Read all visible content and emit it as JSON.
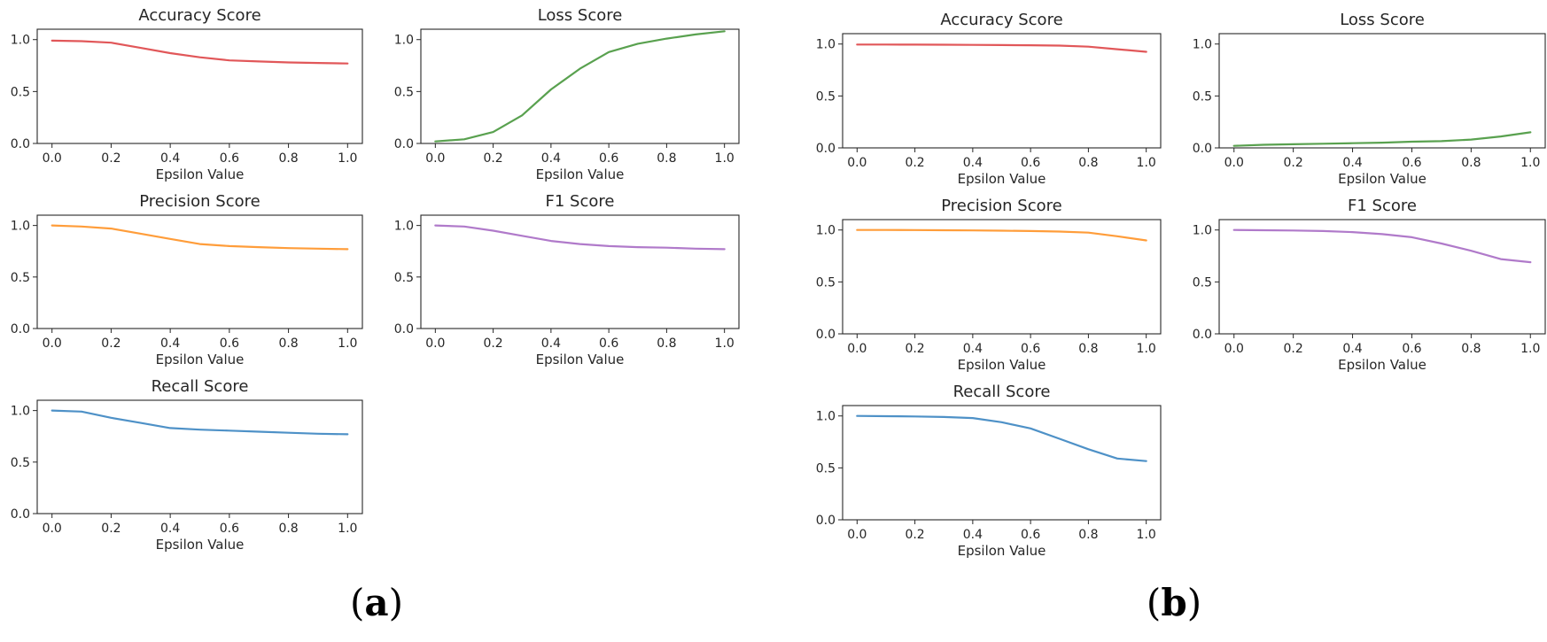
{
  "chart_data": [
    {
      "panel": "a",
      "type": "line",
      "title": "Accuracy Score",
      "xlabel": "Epsilon Value",
      "ylabel": "",
      "color": "#e15759",
      "x": [
        0.0,
        0.1,
        0.2,
        0.3,
        0.4,
        0.5,
        0.6,
        0.7,
        0.8,
        0.9,
        1.0
      ],
      "values": [
        0.99,
        0.985,
        0.97,
        0.92,
        0.87,
        0.83,
        0.8,
        0.79,
        0.78,
        0.775,
        0.77
      ],
      "xlim": [
        0.0,
        1.0
      ],
      "ylim": [
        0.0,
        1.1
      ],
      "xticks": [
        "0.0",
        "0.2",
        "0.4",
        "0.6",
        "0.8",
        "1.0"
      ],
      "yticks": [
        "0.0",
        "0.5",
        "1.0"
      ]
    },
    {
      "panel": "a",
      "type": "line",
      "title": "Loss Score",
      "xlabel": "Epsilon Value",
      "ylabel": "",
      "color": "#59a14f",
      "x": [
        0.0,
        0.1,
        0.2,
        0.3,
        0.4,
        0.5,
        0.6,
        0.7,
        0.8,
        0.9,
        1.0
      ],
      "values": [
        0.02,
        0.04,
        0.11,
        0.27,
        0.52,
        0.72,
        0.88,
        0.96,
        1.01,
        1.05,
        1.08
      ],
      "xlim": [
        0.0,
        1.0
      ],
      "ylim": [
        0.0,
        1.1
      ],
      "xticks": [
        "0.0",
        "0.2",
        "0.4",
        "0.6",
        "0.8",
        "1.0"
      ],
      "yticks": [
        "0.0",
        "0.5",
        "1.0"
      ]
    },
    {
      "panel": "a",
      "type": "line",
      "title": "Precision Score",
      "xlabel": "Epsilon Value",
      "ylabel": "",
      "color": "#ff9d3a",
      "x": [
        0.0,
        0.1,
        0.2,
        0.3,
        0.4,
        0.5,
        0.6,
        0.7,
        0.8,
        0.9,
        1.0
      ],
      "values": [
        1.0,
        0.99,
        0.97,
        0.92,
        0.87,
        0.82,
        0.8,
        0.79,
        0.78,
        0.775,
        0.77
      ],
      "xlim": [
        0.0,
        1.0
      ],
      "ylim": [
        0.0,
        1.1
      ],
      "xticks": [
        "0.0",
        "0.2",
        "0.4",
        "0.6",
        "0.8",
        "1.0"
      ],
      "yticks": [
        "0.0",
        "0.5",
        "1.0"
      ]
    },
    {
      "panel": "a",
      "type": "line",
      "title": "F1 Score",
      "xlabel": "Epsilon Value",
      "ylabel": "",
      "color": "#b07aca",
      "x": [
        0.0,
        0.1,
        0.2,
        0.3,
        0.4,
        0.5,
        0.6,
        0.7,
        0.8,
        0.9,
        1.0
      ],
      "values": [
        1.0,
        0.99,
        0.95,
        0.9,
        0.85,
        0.82,
        0.8,
        0.79,
        0.785,
        0.775,
        0.77
      ],
      "xlim": [
        0.0,
        1.0
      ],
      "ylim": [
        0.0,
        1.1
      ],
      "xticks": [
        "0.0",
        "0.2",
        "0.4",
        "0.6",
        "0.8",
        "1.0"
      ],
      "yticks": [
        "0.0",
        "0.5",
        "1.0"
      ]
    },
    {
      "panel": "a",
      "type": "line",
      "title": "Recall Score",
      "xlabel": "Epsilon Value",
      "ylabel": "",
      "color": "#4e91c7",
      "x": [
        0.0,
        0.1,
        0.2,
        0.3,
        0.4,
        0.5,
        0.6,
        0.7,
        0.8,
        0.9,
        1.0
      ],
      "values": [
        1.0,
        0.99,
        0.93,
        0.88,
        0.83,
        0.815,
        0.805,
        0.795,
        0.785,
        0.775,
        0.77
      ],
      "xlim": [
        0.0,
        1.0
      ],
      "ylim": [
        0.0,
        1.1
      ],
      "xticks": [
        "0.0",
        "0.2",
        "0.4",
        "0.6",
        "0.8",
        "1.0"
      ],
      "yticks": [
        "0.0",
        "0.5",
        "1.0"
      ]
    },
    {
      "panel": "b",
      "type": "line",
      "title": "Accuracy Score",
      "xlabel": "Epsilon Value",
      "ylabel": "",
      "color": "#e15759",
      "x": [
        0.0,
        0.1,
        0.2,
        0.3,
        0.4,
        0.5,
        0.6,
        0.7,
        0.8,
        0.9,
        1.0
      ],
      "values": [
        0.995,
        0.995,
        0.994,
        0.993,
        0.992,
        0.99,
        0.988,
        0.985,
        0.975,
        0.95,
        0.925
      ],
      "xlim": [
        0.0,
        1.0
      ],
      "ylim": [
        0.0,
        1.1
      ],
      "xticks": [
        "0.0",
        "0.2",
        "0.4",
        "0.6",
        "0.8",
        "1.0"
      ],
      "yticks": [
        "0.0",
        "0.5",
        "1.0"
      ]
    },
    {
      "panel": "b",
      "type": "line",
      "title": "Loss Score",
      "xlabel": "Epsilon Value",
      "ylabel": "",
      "color": "#59a14f",
      "x": [
        0.0,
        0.1,
        0.2,
        0.3,
        0.4,
        0.5,
        0.6,
        0.7,
        0.8,
        0.9,
        1.0
      ],
      "values": [
        0.02,
        0.03,
        0.035,
        0.04,
        0.045,
        0.05,
        0.06,
        0.065,
        0.08,
        0.11,
        0.15
      ],
      "xlim": [
        0.0,
        1.0
      ],
      "ylim": [
        0.0,
        1.1
      ],
      "xticks": [
        "0.0",
        "0.2",
        "0.4",
        "0.6",
        "0.8",
        "1.0"
      ],
      "yticks": [
        "0.0",
        "0.5",
        "1.0"
      ]
    },
    {
      "panel": "b",
      "type": "line",
      "title": "Precision Score",
      "xlabel": "Epsilon Value",
      "ylabel": "",
      "color": "#ff9d3a",
      "x": [
        0.0,
        0.1,
        0.2,
        0.3,
        0.4,
        0.5,
        0.6,
        0.7,
        0.8,
        0.9,
        1.0
      ],
      "values": [
        1.0,
        1.0,
        0.999,
        0.998,
        0.996,
        0.993,
        0.99,
        0.985,
        0.975,
        0.94,
        0.9
      ],
      "xlim": [
        0.0,
        1.0
      ],
      "ylim": [
        0.0,
        1.1
      ],
      "xticks": [
        "0.0",
        "0.2",
        "0.4",
        "0.6",
        "0.8",
        "1.0"
      ],
      "yticks": [
        "0.0",
        "0.5",
        "1.0"
      ]
    },
    {
      "panel": "b",
      "type": "line",
      "title": "F1 Score",
      "xlabel": "Epsilon Value",
      "ylabel": "",
      "color": "#b07aca",
      "x": [
        0.0,
        0.1,
        0.2,
        0.3,
        0.4,
        0.5,
        0.6,
        0.7,
        0.8,
        0.9,
        1.0
      ],
      "values": [
        1.0,
        0.998,
        0.995,
        0.99,
        0.98,
        0.96,
        0.93,
        0.87,
        0.8,
        0.72,
        0.69
      ],
      "xlim": [
        0.0,
        1.0
      ],
      "ylim": [
        0.0,
        1.1
      ],
      "xticks": [
        "0.0",
        "0.2",
        "0.4",
        "0.6",
        "0.8",
        "1.0"
      ],
      "yticks": [
        "0.0",
        "0.5",
        "1.0"
      ]
    },
    {
      "panel": "b",
      "type": "line",
      "title": "Recall Score",
      "xlabel": "Epsilon Value",
      "ylabel": "",
      "color": "#4e91c7",
      "x": [
        0.0,
        0.1,
        0.2,
        0.3,
        0.4,
        0.5,
        0.6,
        0.7,
        0.8,
        0.9,
        1.0
      ],
      "values": [
        1.0,
        0.998,
        0.995,
        0.99,
        0.98,
        0.94,
        0.88,
        0.78,
        0.68,
        0.59,
        0.565
      ],
      "xlim": [
        0.0,
        1.0
      ],
      "ylim": [
        0.0,
        1.1
      ],
      "xticks": [
        "0.0",
        "0.2",
        "0.4",
        "0.6",
        "0.8",
        "1.0"
      ],
      "yticks": [
        "0.0",
        "0.5",
        "1.0"
      ]
    }
  ],
  "panel_labels": [
    {
      "open": "(",
      "letter": "a",
      "close": ")"
    },
    {
      "open": "(",
      "letter": "b",
      "close": ")"
    }
  ]
}
